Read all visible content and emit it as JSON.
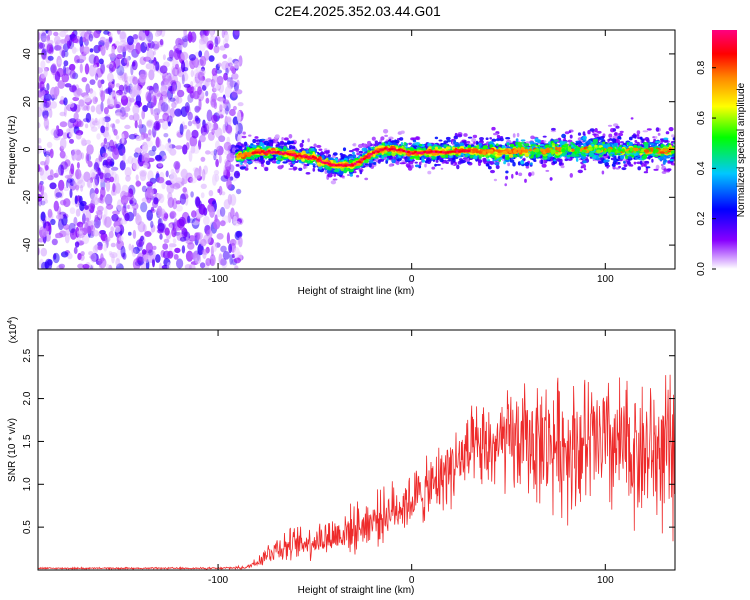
{
  "title": "C2E4.2025.352.03.44.G01",
  "chart_data": [
    {
      "type": "heatmap",
      "title": "C2E4.2025.352.03.44.G01",
      "xlabel": "Height of straight line (km)",
      "ylabel": "Frequency (Hz)",
      "xlim": [
        -193,
        136
      ],
      "ylim": [
        -50,
        50
      ],
      "xticks": [
        -100,
        0,
        100
      ],
      "yticks": [
        -40,
        -20,
        0,
        20,
        40
      ],
      "xtick_labels": [
        "-100",
        "0",
        "100"
      ],
      "ytick_labels": [
        "-40",
        "-20",
        "0",
        "20",
        "40"
      ],
      "noise_region_x": [
        -193,
        -88
      ],
      "signal_region_x": [
        -90,
        136
      ],
      "ridge": {
        "x": [
          -90,
          -80,
          -70,
          -60,
          -50,
          -45,
          -40,
          -35,
          -30,
          -25,
          -20,
          -15,
          -10,
          -5,
          0,
          10,
          20,
          30,
          40,
          50,
          60,
          70,
          80,
          90,
          100,
          110,
          120,
          130,
          136
        ],
        "freq": [
          -3,
          -1,
          -1,
          -2.5,
          -3.5,
          -5.5,
          -6.5,
          -6.5,
          -6.5,
          -4,
          -1.5,
          0,
          0.3,
          -0.5,
          -1.5,
          -1,
          -1,
          -0.5,
          -1,
          -1,
          -0.5,
          -0.5,
          0,
          0,
          0,
          -0.5,
          -0.5,
          -0.5,
          -0.5
        ]
      },
      "colorbar": {
        "label": "Normalized spectral amplitude",
        "range": [
          0,
          0.95
        ],
        "ticks": [
          0.0,
          0.2,
          0.4,
          0.6,
          0.8
        ],
        "tick_labels": [
          "0.0",
          "0.2",
          "0.4",
          "0.6",
          "0.8"
        ],
        "colors": [
          "#ffffff",
          "#8800ff",
          "#0000ff",
          "#00c8ff",
          "#00ff00",
          "#ffff00",
          "#ff8800",
          "#ff0000",
          "#ff0080"
        ]
      }
    },
    {
      "type": "line",
      "xlabel": "Height of straight line (km)",
      "ylabel": "SNR (10 * v/v)",
      "scale_label": "(x10",
      "scale_exponent": "4",
      "scale_close": ")",
      "xlim": [
        -193,
        136
      ],
      "ylim": [
        0.0,
        2.8
      ],
      "xticks": [
        -100,
        0,
        100
      ],
      "yticks": [
        0.5,
        1.0,
        1.5,
        2.0,
        2.5
      ],
      "xtick_labels": [
        "-100",
        "0",
        "100"
      ],
      "ytick_labels": [
        "0.5",
        "1.0",
        "1.5",
        "2.0",
        "2.5"
      ],
      "line_color": "#ee2b2b",
      "envelope": {
        "x": [
          -193,
          -100,
          -85,
          -80,
          -75,
          -70,
          -60,
          -50,
          -40,
          -30,
          -20,
          -10,
          0,
          10,
          20,
          30,
          40,
          50,
          60,
          70,
          80,
          90,
          100,
          110,
          120,
          130,
          136
        ],
        "mean": [
          0.02,
          0.02,
          0.03,
          0.1,
          0.18,
          0.26,
          0.3,
          0.35,
          0.4,
          0.48,
          0.58,
          0.7,
          0.82,
          0.95,
          1.2,
          1.35,
          1.42,
          1.48,
          1.5,
          1.48,
          1.45,
          1.45,
          1.45,
          1.4,
          1.38,
          1.35,
          1.3
        ],
        "spread": [
          0.01,
          0.01,
          0.02,
          0.08,
          0.12,
          0.18,
          0.2,
          0.22,
          0.25,
          0.28,
          0.3,
          0.32,
          0.35,
          0.38,
          0.45,
          0.5,
          0.55,
          0.62,
          0.68,
          0.75,
          0.8,
          0.82,
          0.85,
          0.85,
          0.85,
          0.9,
          0.95
        ]
      }
    }
  ]
}
